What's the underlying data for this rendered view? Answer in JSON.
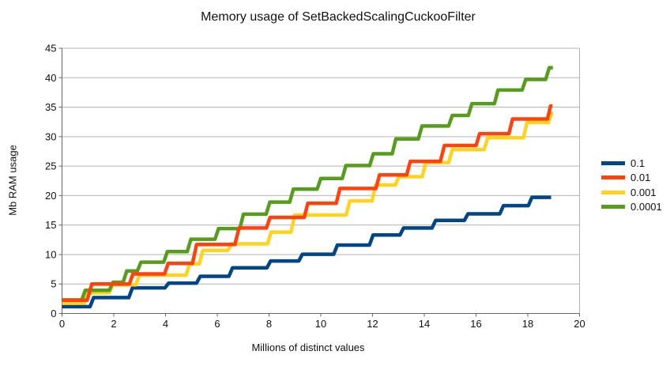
{
  "chart_data": {
    "type": "line",
    "step_style": "stairs",
    "title": "Memory usage of SetBackedScalingCuckooFilter",
    "xlabel": "Millions of distinct values",
    "ylabel": "Mb RAM usage",
    "xlim": [
      0,
      20
    ],
    "ylim": [
      0,
      45
    ],
    "x_ticks": [
      0,
      2,
      4,
      6,
      8,
      10,
      12,
      14,
      16,
      18,
      20
    ],
    "y_ticks": [
      0,
      5,
      10,
      15,
      20,
      25,
      30,
      35,
      40,
      45
    ],
    "grid": "horizontal",
    "legend_position": "right",
    "axis_color": "#666666",
    "grid_color": "#b3b3b3",
    "text_color": "#111111",
    "series": [
      {
        "name": "0.1",
        "color": "#004586",
        "points": [
          [
            0,
            1.15
          ],
          [
            1.08,
            1.15
          ],
          [
            1.22,
            2.7
          ],
          [
            2.58,
            2.7
          ],
          [
            2.72,
            4.35
          ],
          [
            3.98,
            4.35
          ],
          [
            4.12,
            5.15
          ],
          [
            5.2,
            5.15
          ],
          [
            5.34,
            6.3
          ],
          [
            6.45,
            6.3
          ],
          [
            6.59,
            7.75
          ],
          [
            7.92,
            7.75
          ],
          [
            8.06,
            8.9
          ],
          [
            9.15,
            8.9
          ],
          [
            9.29,
            10.05
          ],
          [
            10.5,
            10.05
          ],
          [
            10.64,
            11.6
          ],
          [
            11.88,
            11.6
          ],
          [
            12.02,
            13.3
          ],
          [
            13.06,
            13.3
          ],
          [
            13.2,
            14.5
          ],
          [
            14.3,
            14.5
          ],
          [
            14.44,
            15.8
          ],
          [
            15.55,
            15.8
          ],
          [
            15.69,
            16.9
          ],
          [
            16.92,
            16.9
          ],
          [
            17.06,
            18.3
          ],
          [
            18.02,
            18.3
          ],
          [
            18.16,
            19.7
          ],
          [
            18.9,
            19.7
          ]
        ]
      },
      {
        "name": "0.01",
        "color": "#ff420e",
        "points": [
          [
            0,
            2.25
          ],
          [
            0.97,
            2.25
          ],
          [
            1.15,
            5.0
          ],
          [
            2.6,
            5.0
          ],
          [
            2.74,
            6.7
          ],
          [
            3.96,
            6.7
          ],
          [
            4.1,
            8.5
          ],
          [
            5.04,
            8.5
          ],
          [
            5.2,
            11.7
          ],
          [
            6.68,
            11.7
          ],
          [
            6.84,
            14.5
          ],
          [
            7.9,
            14.5
          ],
          [
            8.04,
            16.3
          ],
          [
            9.36,
            16.3
          ],
          [
            9.5,
            18.7
          ],
          [
            10.6,
            18.7
          ],
          [
            10.74,
            21.2
          ],
          [
            12.13,
            21.2
          ],
          [
            12.27,
            23.5
          ],
          [
            13.32,
            23.5
          ],
          [
            13.46,
            25.8
          ],
          [
            14.62,
            25.8
          ],
          [
            14.78,
            28.5
          ],
          [
            16.0,
            28.5
          ],
          [
            16.14,
            30.5
          ],
          [
            17.27,
            30.5
          ],
          [
            17.41,
            33.0
          ],
          [
            18.76,
            33.0
          ],
          [
            18.88,
            35.2
          ],
          [
            18.95,
            35.2
          ]
        ]
      },
      {
        "name": "0.001",
        "color": "#ffd320",
        "points": [
          [
            0,
            1.75
          ],
          [
            0.86,
            1.75
          ],
          [
            1.0,
            3.5
          ],
          [
            1.82,
            3.5
          ],
          [
            1.96,
            4.85
          ],
          [
            2.85,
            4.85
          ],
          [
            2.99,
            6.5
          ],
          [
            4.79,
            6.5
          ],
          [
            4.93,
            8.4
          ],
          [
            5.3,
            8.4
          ],
          [
            5.44,
            10.7
          ],
          [
            6.41,
            10.7
          ],
          [
            6.55,
            11.8
          ],
          [
            7.94,
            11.8
          ],
          [
            8.08,
            13.8
          ],
          [
            8.85,
            13.8
          ],
          [
            8.99,
            16.7
          ],
          [
            10.98,
            16.7
          ],
          [
            11.12,
            19.1
          ],
          [
            11.98,
            19.1
          ],
          [
            12.12,
            21.8
          ],
          [
            12.88,
            21.8
          ],
          [
            13.02,
            23.2
          ],
          [
            13.92,
            23.2
          ],
          [
            14.06,
            25.6
          ],
          [
            14.94,
            25.6
          ],
          [
            15.08,
            27.8
          ],
          [
            16.31,
            27.8
          ],
          [
            16.45,
            29.8
          ],
          [
            17.83,
            29.8
          ],
          [
            17.97,
            32.4
          ],
          [
            18.8,
            32.4
          ],
          [
            18.92,
            34.0
          ],
          [
            18.97,
            34.0
          ]
        ]
      },
      {
        "name": "0.0001",
        "color": "#579d1c",
        "points": [
          [
            0,
            2.3
          ],
          [
            0.76,
            2.3
          ],
          [
            0.9,
            3.95
          ],
          [
            1.83,
            3.95
          ],
          [
            1.97,
            5.3
          ],
          [
            2.36,
            5.3
          ],
          [
            2.5,
            7.2
          ],
          [
            2.91,
            7.2
          ],
          [
            3.05,
            8.7
          ],
          [
            3.93,
            8.7
          ],
          [
            4.07,
            10.5
          ],
          [
            4.84,
            10.5
          ],
          [
            4.98,
            12.6
          ],
          [
            5.91,
            12.6
          ],
          [
            6.05,
            14.4
          ],
          [
            6.87,
            14.4
          ],
          [
            7.01,
            16.85
          ],
          [
            7.89,
            16.85
          ],
          [
            8.03,
            18.9
          ],
          [
            8.8,
            18.9
          ],
          [
            8.94,
            21.1
          ],
          [
            9.86,
            21.1
          ],
          [
            10.0,
            22.9
          ],
          [
            10.83,
            22.9
          ],
          [
            10.97,
            25.1
          ],
          [
            11.89,
            25.1
          ],
          [
            12.03,
            27.1
          ],
          [
            12.76,
            27.1
          ],
          [
            12.9,
            29.6
          ],
          [
            13.77,
            29.6
          ],
          [
            13.91,
            31.8
          ],
          [
            14.94,
            31.8
          ],
          [
            15.08,
            33.6
          ],
          [
            15.7,
            33.6
          ],
          [
            15.84,
            35.6
          ],
          [
            16.71,
            35.6
          ],
          [
            16.85,
            37.9
          ],
          [
            17.78,
            37.9
          ],
          [
            17.92,
            39.7
          ],
          [
            18.69,
            39.7
          ],
          [
            18.83,
            41.7
          ],
          [
            18.97,
            41.7
          ]
        ]
      }
    ]
  }
}
